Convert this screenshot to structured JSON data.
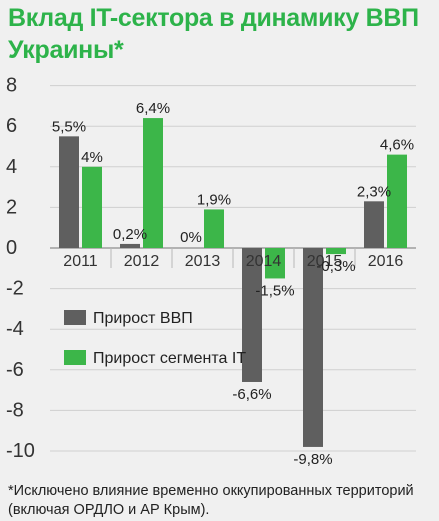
{
  "title": "Вклад IT-сектора в динамику ВВП Украины*",
  "footnote": "*Исключено влияние временно оккупированных территорий (включая ОРДЛО и АР Крым).",
  "chart_data": {
    "type": "bar",
    "title": "Вклад IT-сектора в динамику ВВП Украины*",
    "categories": [
      "2011",
      "2012",
      "2013",
      "2014",
      "2015",
      "2016"
    ],
    "series": [
      {
        "name": "Прирост ВВП",
        "values": [
          5.5,
          0.2,
          0,
          -6.6,
          -9.8,
          2.3
        ],
        "labels": [
          "5,5%",
          "0,2%",
          "0%",
          "-6,6%",
          "-9,8%",
          "2,3%"
        ],
        "color": "#5f5f5f"
      },
      {
        "name": "Прирост сегмента IT",
        "values": [
          4,
          6.4,
          1.9,
          -1.5,
          -0.3,
          4.6
        ],
        "labels": [
          "4%",
          "6,4%",
          "1,9%",
          "-1,5%",
          "-0,3%",
          "4,6%"
        ],
        "color": "#3cb649"
      }
    ],
    "yticks": [
      "8",
      "6",
      "4",
      "2",
      "0",
      "-2",
      "-4",
      "-6",
      "-8",
      "-10"
    ],
    "ylim": [
      -10,
      8
    ],
    "grid": true,
    "legend_position": "center-left"
  }
}
